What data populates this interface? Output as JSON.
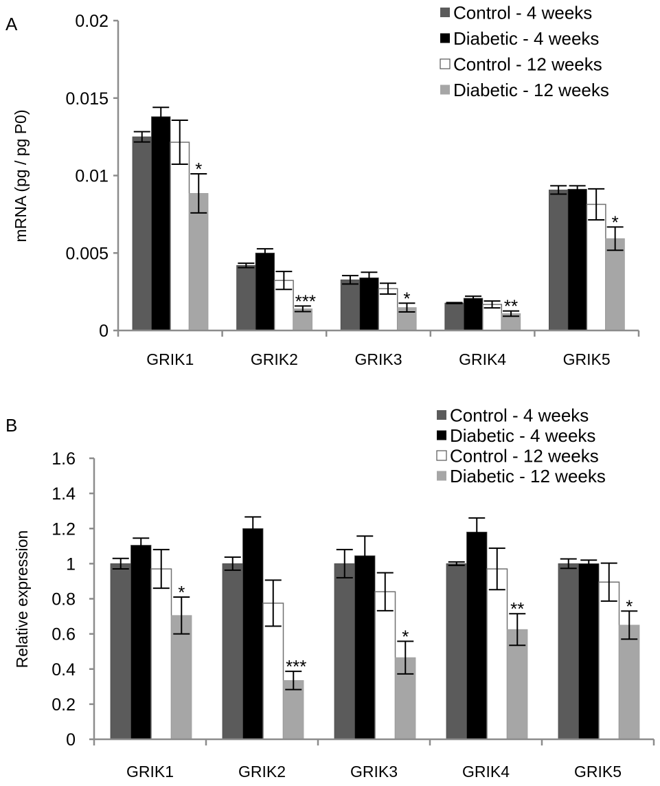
{
  "chart_data": [
    {
      "panel_label": "A",
      "type": "bar",
      "title": "",
      "xlabel": "",
      "ylabel": "mRNA (pg / pg P0)",
      "ylim": [
        0,
        0.02
      ],
      "yticks": [
        0,
        0.005,
        0.01,
        0.015,
        0.02
      ],
      "ytick_labels": [
        "0",
        "0.005",
        "0.01",
        "0.015",
        "0.02"
      ],
      "grid": false,
      "legend_position": "top-right",
      "categories": [
        "GRIK1",
        "GRIK2",
        "GRIK3",
        "GRIK4",
        "GRIK5"
      ],
      "series": [
        {
          "name": "Control - 4 weeks",
          "color": "#5b5b5b",
          "values": [
            0.0125,
            0.0042,
            0.00327,
            0.00177,
            0.00907
          ],
          "err": [
            0.00033,
            0.00014,
            0.00027,
            3e-05,
            0.00027
          ]
        },
        {
          "name": "Diabetic - 4 weeks",
          "color": "#000000",
          "values": [
            0.0138,
            0.005,
            0.0034,
            0.00208,
            0.00912
          ],
          "err": [
            0.0006,
            0.00027,
            0.00036,
            0.00013,
            0.00022
          ]
        },
        {
          "name": "Control - 12 weeks",
          "color": "#ffffff",
          "values": [
            0.01215,
            0.00323,
            0.0027,
            0.00168,
            0.00814
          ],
          "err": [
            0.00142,
            0.00058,
            0.00035,
            0.00022,
            0.001
          ]
        },
        {
          "name": "Diabetic - 12 weeks",
          "color": "#a6a6a6",
          "values": [
            0.00885,
            0.0014,
            0.00148,
            0.00109,
            0.00593
          ],
          "err": [
            0.00126,
            0.00018,
            0.00028,
            0.00017,
            0.00075
          ]
        }
      ],
      "annotations": [
        {
          "category": "GRIK1",
          "text": "*"
        },
        {
          "category": "GRIK2",
          "text": "***"
        },
        {
          "category": "GRIK3",
          "text": "*"
        },
        {
          "category": "GRIK4",
          "text": "**"
        },
        {
          "category": "GRIK5",
          "text": "*"
        }
      ]
    },
    {
      "panel_label": "B",
      "type": "bar",
      "title": "",
      "xlabel": "",
      "ylabel": "Relative expression",
      "ylim": [
        0,
        1.6
      ],
      "yticks": [
        0,
        0.2,
        0.4,
        0.6,
        0.8,
        1,
        1.2,
        1.4,
        1.6
      ],
      "ytick_labels": [
        "0",
        "0.2",
        "0.4",
        "0.6",
        "0.8",
        "1",
        "1.2",
        "1.4",
        "1.6"
      ],
      "grid": false,
      "legend_position": "top-right",
      "categories": [
        "GRIK1",
        "GRIK2",
        "GRIK3",
        "GRIK4",
        "GRIK5"
      ],
      "series": [
        {
          "name": "Control - 4 weeks",
          "color": "#5b5b5b",
          "values": [
            1.0,
            1.0,
            1.0,
            1.0,
            1.0
          ],
          "err": [
            0.03,
            0.037,
            0.08,
            0.01,
            0.027
          ]
        },
        {
          "name": "Diabetic - 4 weeks",
          "color": "#000000",
          "values": [
            1.105,
            1.2,
            1.045,
            1.18,
            1.0
          ],
          "err": [
            0.04,
            0.066,
            0.112,
            0.08,
            0.02
          ]
        },
        {
          "name": "Control - 12 weeks",
          "color": "#ffffff",
          "values": [
            0.97,
            0.775,
            0.84,
            0.97,
            0.895
          ],
          "err": [
            0.11,
            0.131,
            0.108,
            0.118,
            0.108
          ]
        },
        {
          "name": "Diabetic - 12 weeks",
          "color": "#a6a6a6",
          "values": [
            0.705,
            0.335,
            0.465,
            0.625,
            0.65
          ],
          "err": [
            0.105,
            0.052,
            0.093,
            0.09,
            0.08
          ]
        }
      ],
      "annotations": [
        {
          "category": "GRIK1",
          "text": "*"
        },
        {
          "category": "GRIK2",
          "text": "***"
        },
        {
          "category": "GRIK3",
          "text": "*"
        },
        {
          "category": "GRIK4",
          "text": "**"
        },
        {
          "category": "GRIK5",
          "text": "*"
        }
      ]
    }
  ]
}
